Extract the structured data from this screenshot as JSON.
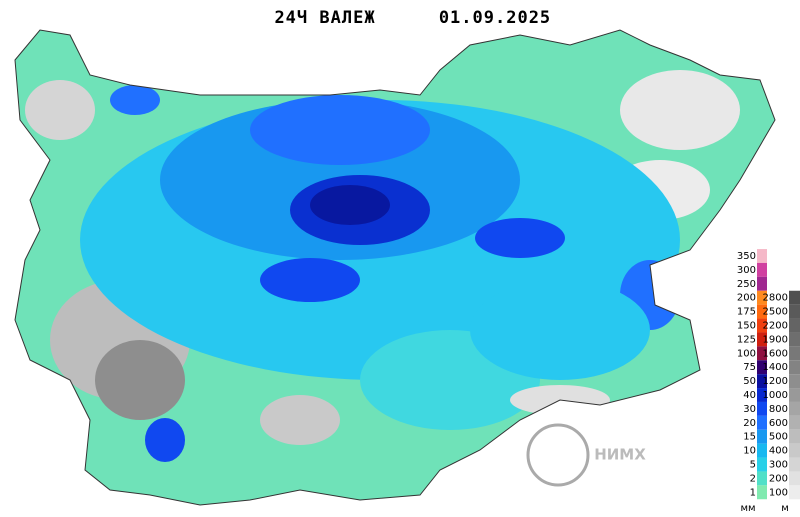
{
  "header": {
    "title": "24Ч ВАЛЕЖ",
    "date": "01.09.2025"
  },
  "logo": {
    "text": "НИМХ"
  },
  "legend": {
    "precip_unit": "мм",
    "elevation_unit": "м",
    "precip_levels": [
      350,
      300,
      250,
      200,
      175,
      150,
      125,
      100,
      75,
      50,
      40,
      30,
      20,
      15,
      10,
      5,
      2,
      1
    ],
    "precip_colors": [
      "#f5b8c8",
      "#d040a0",
      "#a02890",
      "#ff8a20",
      "#ff6a10",
      "#f04010",
      "#d02010",
      "#901040",
      "#300070",
      "#0a10a0",
      "#0828d0",
      "#1048f0",
      "#2070ff",
      "#1898f0",
      "#18b8f0",
      "#28d0e8",
      "#50e0c8",
      "#80eab0"
    ],
    "elevation_levels": [
      2800,
      2500,
      2200,
      1900,
      1600,
      1400,
      1200,
      1000,
      800,
      600,
      500,
      400,
      300,
      200,
      100
    ],
    "elevation_colors": [
      "#505050",
      "#5a5a5a",
      "#646464",
      "#6e6e6e",
      "#787878",
      "#838383",
      "#8e8e8e",
      "#999999",
      "#a5a5a5",
      "#b1b1b1",
      "#bdbdbd",
      "#c9c9c9",
      "#d5d5d5",
      "#e1e1e1",
      "#ededed"
    ]
  }
}
